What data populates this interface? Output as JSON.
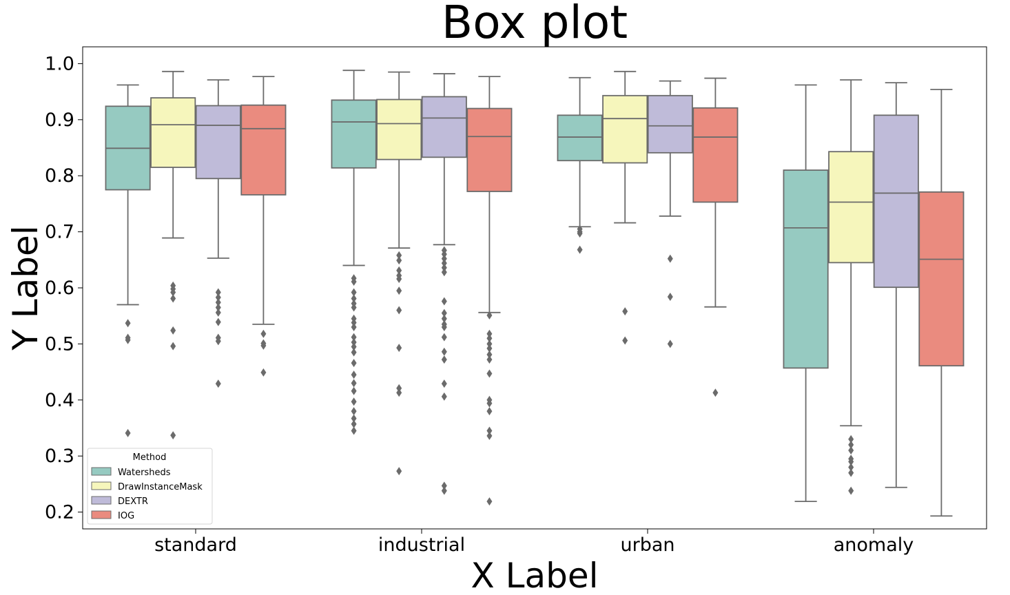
{
  "chart_data": {
    "type": "box",
    "title": "Box plot",
    "xlabel": "X Label",
    "ylabel": "Y Label",
    "ylim": [
      0.17,
      1.03
    ],
    "yticks": [
      "0.2",
      "0.3",
      "0.4",
      "0.5",
      "0.6",
      "0.7",
      "0.8",
      "0.9",
      "1.0"
    ],
    "categories": [
      "standard",
      "industrial",
      "urban",
      "anomaly"
    ],
    "legend": {
      "title": "Method",
      "position": "lower-left"
    },
    "series": [
      {
        "name": "Watersheds",
        "color": "#96cac1",
        "boxes": [
          {
            "whislo": 0.57,
            "q1": 0.775,
            "med": 0.849,
            "q3": 0.924,
            "whishi": 0.962,
            "fliers": [
              0.537,
              0.511,
              0.507,
              0.341
            ]
          },
          {
            "whislo": 0.64,
            "q1": 0.814,
            "med": 0.896,
            "q3": 0.935,
            "whishi": 0.988,
            "fliers": [
              0.617,
              0.611,
              0.592,
              0.581,
              0.572,
              0.565,
              0.545,
              0.538,
              0.53,
              0.512,
              0.503,
              0.495,
              0.485,
              0.466,
              0.445,
              0.43,
              0.416,
              0.397,
              0.38,
              0.367,
              0.357,
              0.345
            ]
          },
          {
            "whislo": 0.709,
            "q1": 0.827,
            "med": 0.869,
            "q3": 0.908,
            "whishi": 0.975,
            "fliers": [
              0.705,
              0.7,
              0.697,
              0.668
            ]
          },
          {
            "whislo": 0.219,
            "q1": 0.457,
            "med": 0.707,
            "q3": 0.81,
            "whishi": 0.962,
            "fliers": []
          }
        ]
      },
      {
        "name": "DrawInstanceMask",
        "color": "#f6f6bc",
        "boxes": [
          {
            "whislo": 0.689,
            "q1": 0.815,
            "med": 0.891,
            "q3": 0.939,
            "whishi": 0.986,
            "fliers": [
              0.604,
              0.598,
              0.592,
              0.581,
              0.524,
              0.496,
              0.337
            ]
          },
          {
            "whislo": 0.671,
            "q1": 0.829,
            "med": 0.893,
            "q3": 0.936,
            "whishi": 0.985,
            "fliers": [
              0.658,
              0.649,
              0.631,
              0.622,
              0.616,
              0.595,
              0.56,
              0.493,
              0.421,
              0.413,
              0.273
            ]
          },
          {
            "whislo": 0.716,
            "q1": 0.823,
            "med": 0.902,
            "q3": 0.943,
            "whishi": 0.986,
            "fliers": [
              0.558,
              0.506
            ]
          },
          {
            "whislo": 0.354,
            "q1": 0.645,
            "med": 0.753,
            "q3": 0.843,
            "whishi": 0.971,
            "fliers": [
              0.33,
              0.32,
              0.31,
              0.295,
              0.29,
              0.28,
              0.27,
              0.238
            ]
          }
        ]
      },
      {
        "name": "DEXTR",
        "color": "#bfbbd9",
        "boxes": [
          {
            "whislo": 0.653,
            "q1": 0.795,
            "med": 0.89,
            "q3": 0.925,
            "whishi": 0.971,
            "fliers": [
              0.592,
              0.583,
              0.574,
              0.565,
              0.556,
              0.539,
              0.511,
              0.505,
              0.429
            ]
          },
          {
            "whislo": 0.677,
            "q1": 0.833,
            "med": 0.903,
            "q3": 0.941,
            "whishi": 0.982,
            "fliers": [
              0.667,
              0.66,
              0.652,
              0.644,
              0.636,
              0.628,
              0.576,
              0.555,
              0.545,
              0.535,
              0.53,
              0.512,
              0.486,
              0.472,
              0.429,
              0.406,
              0.247,
              0.238
            ]
          },
          {
            "whislo": 0.728,
            "q1": 0.841,
            "med": 0.889,
            "q3": 0.943,
            "whishi": 0.969,
            "fliers": [
              0.652,
              0.584,
              0.5
            ]
          },
          {
            "whislo": 0.244,
            "q1": 0.601,
            "med": 0.769,
            "q3": 0.908,
            "whishi": 0.966,
            "fliers": []
          }
        ]
      },
      {
        "name": "IOG",
        "color": "#ea8b7f",
        "boxes": [
          {
            "whislo": 0.535,
            "q1": 0.766,
            "med": 0.884,
            "q3": 0.926,
            "whishi": 0.977,
            "fliers": [
              0.518,
              0.501,
              0.497,
              0.449
            ]
          },
          {
            "whislo": 0.556,
            "q1": 0.772,
            "med": 0.87,
            "q3": 0.92,
            "whishi": 0.977,
            "fliers": [
              0.551,
              0.518,
              0.51,
              0.5,
              0.492,
              0.481,
              0.472,
              0.447,
              0.4,
              0.394,
              0.38,
              0.345,
              0.336,
              0.219
            ]
          },
          {
            "whislo": 0.566,
            "q1": 0.753,
            "med": 0.869,
            "q3": 0.921,
            "whishi": 0.974,
            "fliers": [
              0.413
            ]
          },
          {
            "whislo": 0.193,
            "q1": 0.461,
            "med": 0.651,
            "q3": 0.771,
            "whishi": 0.954,
            "fliers": []
          }
        ]
      }
    ]
  }
}
